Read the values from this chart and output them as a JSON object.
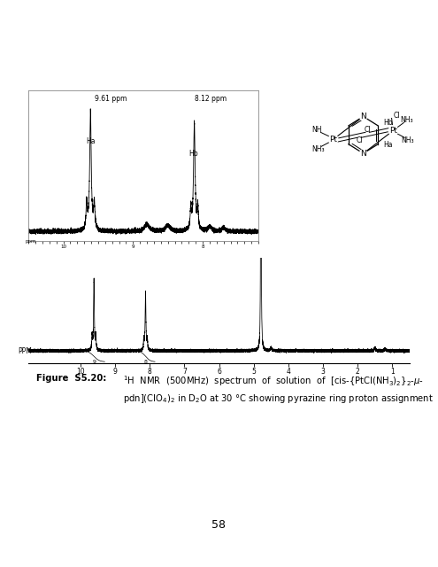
{
  "background_color": "#ffffff",
  "page_number": "58",
  "top_spectrum": {
    "xmin": 10.5,
    "xmax": 7.2,
    "peak_a_ppm": 9.61,
    "peak_b_ppm": 8.12,
    "label_a": "9.61 ppm",
    "label_b": "8.12 ppm",
    "ha_label": "Ha",
    "hb_label": "Hb"
  },
  "bottom_spectrum": {
    "xmin": 11.5,
    "xmax": 0.5,
    "xlabel": "PPM",
    "peak_a_ppm": 9.61,
    "peak_b_ppm": 8.12,
    "peak_solvent_ppm": 4.79,
    "tick_values": [
      10.0,
      9.0,
      8.0,
      7.0,
      6.0,
      5.0,
      4.0,
      3.0,
      2.0,
      1.0
    ]
  }
}
